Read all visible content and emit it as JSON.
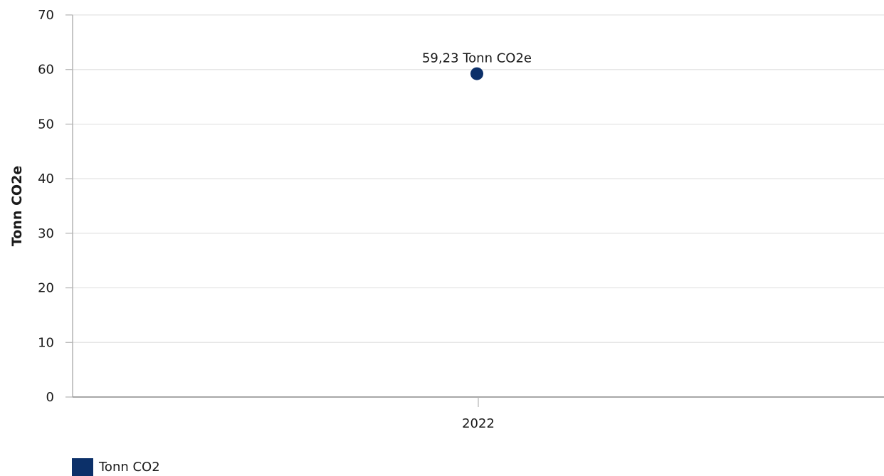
{
  "chart_data": {
    "type": "scatter",
    "ylabel": "Tonn CO2e",
    "xlabel": "",
    "categories": [
      "2022"
    ],
    "ylim": [
      0,
      70
    ],
    "yticks": [
      0,
      10,
      20,
      30,
      40,
      50,
      60,
      70
    ],
    "grid": true,
    "legend_position": "bottom-left",
    "series": [
      {
        "name": "Tonn CO2",
        "color": "#0c3069",
        "values": [
          59.23
        ],
        "data_labels": [
          "59,23 Tonn CO2e"
        ]
      }
    ]
  }
}
